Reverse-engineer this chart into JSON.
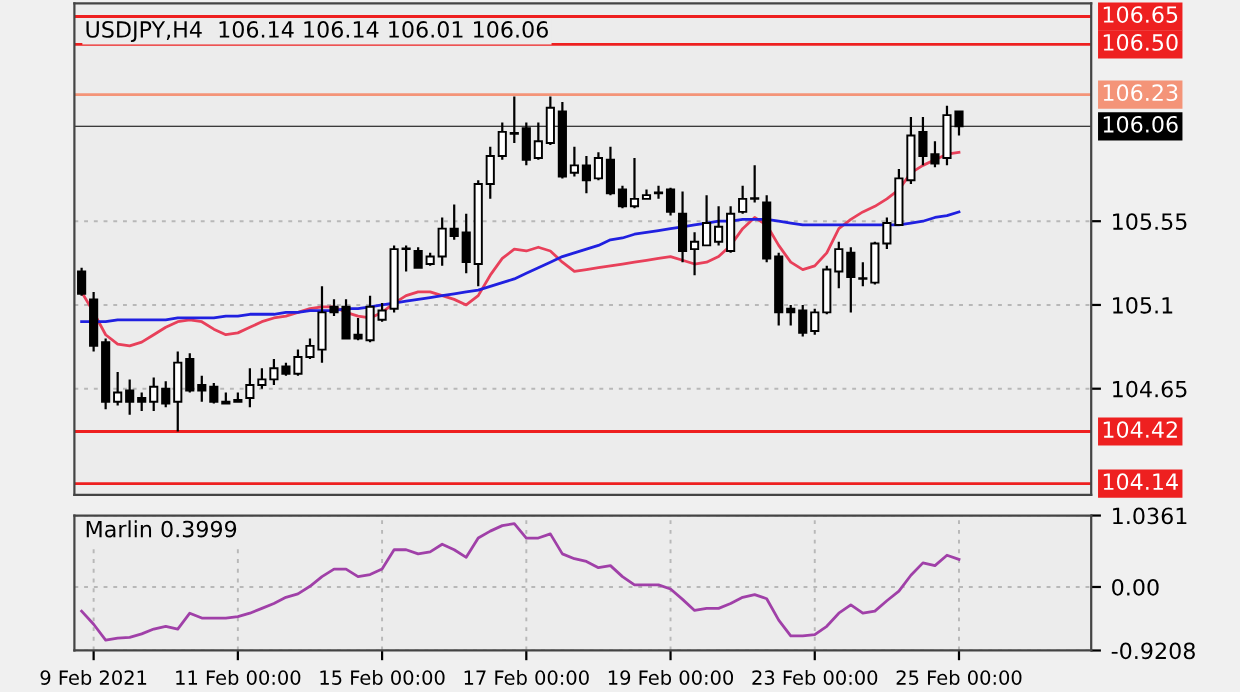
{
  "chart_data": [
    {
      "type": "candlestick",
      "title": "USDJPY,H4  106.14 106.14 106.01 106.06",
      "categories": [
        null,
        null,
        null,
        null,
        null,
        null,
        null,
        null,
        null,
        null,
        null,
        null,
        null,
        null,
        null,
        null,
        null,
        null,
        null,
        null,
        null,
        null,
        null,
        null,
        null,
        null,
        null,
        null,
        null,
        null,
        null,
        null,
        null,
        null,
        null,
        null,
        null,
        null,
        null,
        null,
        null,
        null,
        null,
        null,
        null,
        null,
        null,
        null,
        null,
        null,
        null,
        null,
        null,
        null,
        null,
        null,
        null,
        null,
        null,
        null,
        null,
        null,
        null,
        null,
        null,
        null,
        null,
        null,
        null,
        null,
        null,
        null,
        null,
        null
      ],
      "ohlc": [
        [
          105.28,
          105.3,
          105.15,
          105.16
        ],
        [
          105.13,
          105.17,
          104.85,
          104.88
        ],
        [
          104.9,
          104.92,
          104.54,
          104.58
        ],
        [
          104.58,
          104.74,
          104.56,
          104.63
        ],
        [
          104.64,
          104.7,
          104.51,
          104.58
        ],
        [
          104.6,
          104.63,
          104.53,
          104.58
        ],
        [
          104.58,
          104.71,
          104.53,
          104.66
        ],
        [
          104.65,
          104.69,
          104.55,
          104.57
        ],
        [
          104.58,
          104.85,
          104.42,
          104.79
        ],
        [
          104.81,
          104.84,
          104.63,
          104.64
        ],
        [
          104.67,
          104.72,
          104.58,
          104.64
        ],
        [
          104.66,
          104.68,
          104.57,
          104.58
        ],
        [
          104.58,
          104.63,
          104.57,
          104.57
        ],
        [
          104.59,
          104.63,
          104.58,
          104.58
        ],
        [
          104.6,
          104.76,
          104.55,
          104.67
        ],
        [
          104.67,
          104.76,
          104.65,
          104.7
        ],
        [
          104.7,
          104.81,
          104.67,
          104.76
        ],
        [
          104.77,
          104.79,
          104.72,
          104.73
        ],
        [
          104.73,
          104.86,
          104.72,
          104.82
        ],
        [
          104.82,
          104.92,
          104.81,
          104.88
        ],
        [
          104.86,
          105.2,
          104.79,
          105.06
        ],
        [
          105.09,
          105.13,
          105.04,
          105.06
        ],
        [
          105.09,
          105.13,
          104.92,
          104.92
        ],
        [
          104.94,
          105.03,
          104.91,
          104.92
        ],
        [
          104.91,
          105.15,
          104.9,
          105.09
        ],
        [
          105.02,
          105.11,
          105.01,
          105.07
        ],
        [
          105.08,
          105.42,
          105.06,
          105.4
        ],
        [
          105.4,
          105.42,
          105.28,
          105.4
        ],
        [
          105.39,
          105.41,
          105.3,
          105.3
        ],
        [
          105.32,
          105.38,
          105.31,
          105.36
        ],
        [
          105.36,
          105.57,
          105.31,
          105.51
        ],
        [
          105.51,
          105.64,
          105.45,
          105.47
        ],
        [
          105.49,
          105.59,
          105.27,
          105.33
        ],
        [
          105.32,
          105.77,
          105.2,
          105.75
        ],
        [
          105.75,
          105.95,
          105.67,
          105.9
        ],
        [
          105.9,
          106.08,
          105.88,
          106.03
        ],
        [
          106.02,
          106.22,
          105.97,
          106.02
        ],
        [
          106.05,
          106.08,
          105.85,
          105.88
        ],
        [
          105.89,
          106.08,
          105.88,
          105.98
        ],
        [
          105.97,
          106.22,
          105.96,
          106.16
        ],
        [
          106.14,
          106.19,
          105.78,
          105.79
        ],
        [
          105.81,
          105.95,
          105.79,
          105.85
        ],
        [
          105.85,
          105.9,
          105.7,
          105.77
        ],
        [
          105.78,
          105.92,
          105.77,
          105.89
        ],
        [
          105.88,
          105.95,
          105.69,
          105.7
        ],
        [
          105.72,
          105.74,
          105.62,
          105.63
        ],
        [
          105.63,
          105.89,
          105.62,
          105.67
        ],
        [
          105.67,
          105.72,
          105.67,
          105.69
        ],
        [
          105.7,
          105.74,
          105.67,
          105.7
        ],
        [
          105.72,
          105.73,
          105.58,
          105.6
        ],
        [
          105.59,
          105.71,
          105.33,
          105.39
        ],
        [
          105.4,
          105.49,
          105.26,
          105.44
        ],
        [
          105.42,
          105.69,
          105.42,
          105.54
        ],
        [
          105.44,
          105.63,
          105.42,
          105.52
        ],
        [
          105.39,
          105.63,
          105.38,
          105.59
        ],
        [
          105.6,
          105.74,
          105.59,
          105.67
        ],
        [
          105.67,
          105.85,
          105.65,
          105.67
        ],
        [
          105.65,
          105.69,
          105.33,
          105.35
        ],
        [
          105.36,
          105.38,
          104.99,
          105.06
        ],
        [
          105.08,
          105.1,
          104.99,
          105.06
        ],
        [
          105.07,
          105.1,
          104.93,
          104.95
        ],
        [
          104.96,
          105.08,
          104.94,
          105.06
        ],
        [
          105.06,
          105.31,
          105.05,
          105.29
        ],
        [
          105.28,
          105.44,
          105.19,
          105.4
        ],
        [
          105.38,
          105.41,
          105.06,
          105.25
        ],
        [
          105.24,
          105.33,
          105.2,
          105.24
        ],
        [
          105.22,
          105.44,
          105.21,
          105.43
        ],
        [
          105.43,
          105.57,
          105.4,
          105.54
        ],
        [
          105.53,
          105.83,
          105.53,
          105.78
        ],
        [
          105.77,
          106.11,
          105.75,
          106.01
        ],
        [
          106.03,
          106.11,
          105.85,
          105.9
        ],
        [
          105.91,
          105.98,
          105.84,
          105.86
        ],
        [
          105.89,
          106.17,
          105.85,
          106.12
        ],
        [
          106.14,
          106.14,
          106.01,
          106.06
        ]
      ],
      "series": [
        {
          "type": "line",
          "color": "#e8405a",
          "values": [
            105.17,
            105.06,
            104.94,
            104.89,
            104.88,
            104.9,
            104.94,
            104.98,
            105.01,
            105.02,
            105.01,
            104.97,
            104.94,
            104.95,
            104.98,
            105.01,
            105.03,
            105.04,
            105.06,
            105.08,
            105.09,
            105.09,
            105.06,
            105.04,
            105.03,
            105.06,
            105.11,
            105.15,
            105.17,
            105.17,
            105.15,
            105.13,
            105.1,
            105.15,
            105.26,
            105.35,
            105.4,
            105.39,
            105.41,
            105.39,
            105.33,
            105.28,
            105.29,
            105.3,
            105.31,
            105.32,
            105.33,
            105.34,
            105.35,
            105.36,
            105.34,
            105.32,
            105.33,
            105.36,
            105.42,
            105.51,
            105.57,
            105.53,
            105.42,
            105.33,
            105.29,
            105.31,
            105.38,
            105.51,
            105.56,
            105.6,
            105.63,
            105.67,
            105.72,
            105.81,
            105.85,
            105.88,
            105.91,
            105.92
          ]
        },
        {
          "type": "line",
          "color": "#2020e0",
          "values": [
            105.01,
            105.01,
            105.01,
            105.02,
            105.02,
            105.02,
            105.02,
            105.02,
            105.03,
            105.03,
            105.03,
            105.03,
            105.04,
            105.04,
            105.05,
            105.05,
            105.05,
            105.06,
            105.06,
            105.07,
            105.07,
            105.07,
            105.08,
            105.08,
            105.09,
            105.1,
            105.11,
            105.12,
            105.13,
            105.14,
            105.15,
            105.16,
            105.17,
            105.18,
            105.2,
            105.22,
            105.24,
            105.27,
            105.3,
            105.33,
            105.36,
            105.38,
            105.4,
            105.42,
            105.45,
            105.46,
            105.48,
            105.49,
            105.5,
            105.51,
            105.52,
            105.53,
            105.54,
            105.55,
            105.55,
            105.56,
            105.56,
            105.56,
            105.55,
            105.54,
            105.53,
            105.53,
            105.53,
            105.53,
            105.53,
            105.53,
            105.53,
            105.53,
            105.53,
            105.54,
            105.55,
            105.57,
            105.58,
            105.6
          ]
        }
      ],
      "ylim": [
        104.08,
        106.72
      ],
      "yticks": [
        104.65,
        105.1,
        105.55
      ],
      "ref_lines": [
        {
          "axis": "y",
          "value": 106.65,
          "label": "106.65",
          "color": "#ee2020"
        },
        {
          "axis": "y",
          "value": 106.5,
          "label": "106.50",
          "color": "#ee2020"
        },
        {
          "axis": "y",
          "value": 106.23,
          "label": "106.23",
          "color": "#f49478"
        },
        {
          "axis": "y",
          "value": 106.06,
          "label": "106.06",
          "color": "#000000"
        },
        {
          "axis": "y",
          "value": 104.42,
          "label": "104.42",
          "color": "#ee2020"
        },
        {
          "axis": "y",
          "value": 104.14,
          "label": "104.14",
          "color": "#ee2020"
        }
      ],
      "grid": true,
      "tick_labels": "y"
    },
    {
      "type": "line",
      "title": "Marlin 0.3999",
      "categories": [
        null,
        "9 Feb 2021",
        null,
        null,
        null,
        null,
        null,
        null,
        null,
        null,
        null,
        null,
        null,
        "11 Feb 00:00",
        null,
        null,
        null,
        null,
        null,
        null,
        null,
        null,
        null,
        null,
        null,
        "15 Feb 00:00",
        null,
        null,
        null,
        null,
        null,
        null,
        null,
        null,
        null,
        null,
        null,
        "17 Feb 00:00",
        null,
        null,
        null,
        null,
        null,
        null,
        null,
        null,
        null,
        null,
        null,
        "19 Feb 00:00",
        null,
        null,
        null,
        null,
        null,
        null,
        null,
        null,
        null,
        null,
        null,
        "23 Feb 00:00",
        null,
        null,
        null,
        null,
        null,
        null,
        null,
        null,
        null,
        null,
        null,
        "25 Feb 00:00"
      ],
      "series": [
        {
          "color": "#a040a8",
          "values": [
            -0.35,
            -0.54,
            -0.77,
            -0.74,
            -0.73,
            -0.68,
            -0.61,
            -0.57,
            -0.61,
            -0.38,
            -0.45,
            -0.45,
            -0.45,
            -0.43,
            -0.38,
            -0.31,
            -0.24,
            -0.15,
            -0.1,
            0.01,
            0.15,
            0.26,
            0.26,
            0.15,
            0.18,
            0.26,
            0.54,
            0.54,
            0.48,
            0.51,
            0.62,
            0.54,
            0.43,
            0.71,
            0.81,
            0.89,
            0.92,
            0.71,
            0.71,
            0.77,
            0.48,
            0.41,
            0.37,
            0.28,
            0.31,
            0.15,
            0.03,
            0.03,
            0.03,
            -0.03,
            -0.18,
            -0.34,
            -0.31,
            -0.31,
            -0.24,
            -0.15,
            -0.11,
            -0.17,
            -0.48,
            -0.71,
            -0.71,
            -0.69,
            -0.57,
            -0.38,
            -0.26,
            -0.38,
            -0.35,
            -0.2,
            -0.06,
            0.17,
            0.35,
            0.31,
            0.46,
            0.4
          ]
        }
      ],
      "ylim": [
        -0.9208,
        1.0361
      ],
      "yticks": [
        -0.9208,
        {
          "value": 0,
          "label": "0.00"
        },
        1.0361
      ],
      "grid": true
    }
  ]
}
